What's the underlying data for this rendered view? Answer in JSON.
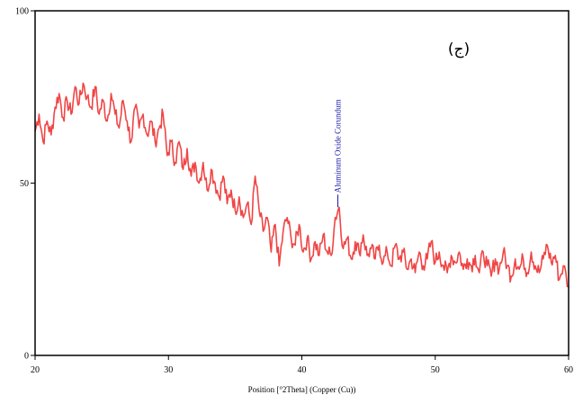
{
  "chart_data": {
    "type": "line",
    "panel_label": "(ج)",
    "xlabel": "Position [°2Theta] (Copper (Cu))",
    "ylabel": "",
    "xlim": [
      20,
      60
    ],
    "ylim": [
      0,
      100
    ],
    "xticks": [
      20,
      30,
      40,
      50,
      60
    ],
    "yticks": [
      0,
      50,
      100
    ],
    "grid": false,
    "colors": {
      "series": "#f04545",
      "peak": "#1a1aa8",
      "axis": "#000000"
    },
    "series": [
      {
        "x": [
          20,
          20.3,
          20.6,
          20.9,
          21.2,
          21.5,
          21.8,
          22.1,
          22.4,
          22.7,
          23.0,
          23.3,
          23.6,
          23.9,
          24.2,
          24.5,
          24.8,
          25.1,
          25.4,
          25.7,
          26.0,
          26.3,
          26.6,
          26.9,
          27.2,
          27.5,
          27.8,
          28.1,
          28.4,
          28.7,
          29.0,
          29.3,
          29.6,
          29.9,
          30.2,
          30.5,
          30.8,
          31.1,
          31.4,
          31.7,
          32.0,
          32.3,
          32.6,
          32.9,
          33.2,
          33.5,
          33.8,
          34.1,
          34.4,
          34.7,
          35.0,
          35.3,
          35.6,
          35.9,
          36.2,
          36.5,
          36.8,
          37.1,
          37.4,
          37.7,
          38.0,
          38.3,
          38.6,
          38.9,
          39.2,
          39.5,
          39.8,
          40.1,
          40.4,
          40.7,
          41.0,
          41.3,
          41.6,
          41.9,
          42.2,
          42.5,
          42.8,
          43.1,
          43.4,
          43.7,
          44.0,
          44.3,
          44.6,
          44.9,
          45.2,
          45.5,
          45.8,
          46.1,
          46.4,
          46.7,
          47.0,
          47.3,
          47.6,
          47.9,
          48.2,
          48.5,
          48.8,
          49.1,
          49.4,
          49.7,
          50.0,
          50.3,
          50.6,
          50.9,
          51.2,
          51.5,
          51.8,
          52.1,
          52.4,
          52.7,
          53.0,
          53.3,
          53.6,
          53.9,
          54.2,
          54.5,
          54.8,
          55.1,
          55.4,
          55.7,
          56.0,
          56.3,
          56.6,
          56.9,
          57.2,
          57.5,
          57.8,
          58.1,
          58.4,
          58.7,
          59.0,
          59.3,
          59.6,
          60.0
        ],
        "y": [
          65,
          70,
          62,
          68,
          64,
          72,
          76,
          69,
          74,
          70,
          78,
          73,
          79,
          75,
          72,
          78,
          70,
          74,
          68,
          76,
          70,
          66,
          74,
          68,
          62,
          72,
          66,
          70,
          64,
          68,
          62,
          66,
          70,
          58,
          62,
          56,
          62,
          54,
          60,
          52,
          56,
          50,
          56,
          48,
          54,
          50,
          46,
          52,
          44,
          48,
          42,
          46,
          40,
          44,
          38,
          52,
          42,
          36,
          40,
          30,
          38,
          26,
          36,
          40,
          34,
          32,
          38,
          30,
          34,
          28,
          33,
          29,
          35,
          30,
          29,
          40,
          43,
          31,
          34,
          28,
          33,
          30,
          35,
          29,
          31,
          28,
          32,
          27,
          30,
          26,
          32,
          28,
          30,
          25,
          28,
          24,
          30,
          26,
          28,
          33,
          27,
          30,
          26,
          24,
          29,
          27,
          30,
          25,
          28,
          26,
          29,
          24,
          30,
          26,
          23,
          28,
          25,
          30,
          26,
          23,
          28,
          25,
          28,
          24,
          30,
          26,
          24,
          28,
          32,
          27,
          29,
          22,
          26,
          20
        ],
        "peaks": [
          {
            "x": 42.7,
            "y": 43,
            "label": "Aluminum Oxide Corundum"
          }
        ]
      }
    ]
  }
}
